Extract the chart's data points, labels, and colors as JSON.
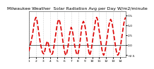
{
  "title": "Milwaukee Weather  Solar Radiation Avg per Day W/m2/minute",
  "line_color": "#dd0000",
  "line_style": "--",
  "line_width": 1.2,
  "bg_color": "#ffffff",
  "grid_color": "#aaaaaa",
  "ylim": [
    -3.0,
    8.5
  ],
  "yticks": [
    -2.5,
    0,
    2.5,
    5.0,
    7.5
  ],
  "y_values": [
    -1.5,
    -0.5,
    0.5,
    1.5,
    2.5,
    4.0,
    5.5,
    6.5,
    7.0,
    6.5,
    5.0,
    3.5,
    2.0,
    0.5,
    -0.5,
    -1.5,
    -2.0,
    -2.2,
    -1.5,
    -0.5,
    0.5,
    1.0,
    0.5,
    -0.5,
    -1.5,
    -2.0,
    -2.3,
    -2.0,
    -1.0,
    0.5,
    2.0,
    3.5,
    5.0,
    6.0,
    6.5,
    6.0,
    5.0,
    3.5,
    2.0,
    0.5,
    -1.0,
    -2.0,
    -2.5,
    -2.0,
    -1.0,
    0.5,
    2.5,
    3.5,
    4.5,
    4.0,
    3.0,
    1.5,
    0.0,
    -1.0,
    -2.0,
    -2.4,
    -2.0,
    -1.0,
    0.5,
    2.5,
    4.5,
    5.5,
    6.0,
    5.5,
    4.5,
    3.0,
    1.5,
    0.0,
    -1.5,
    -2.5,
    -2.0,
    -1.0,
    0.5,
    2.0,
    3.5,
    5.0,
    6.5,
    7.0,
    6.5,
    5.0,
    3.5,
    2.0,
    0.5,
    -1.0,
    -2.0,
    -2.5,
    -2.0,
    -1.0,
    0.5,
    2.0,
    3.5,
    5.0,
    6.0,
    6.5,
    6.0,
    5.0,
    3.5,
    2.0,
    0.5,
    -1.0,
    -2.0,
    -2.5,
    -2.2,
    -1.5,
    -0.5,
    1.0,
    2.5,
    4.0,
    5.5,
    6.5,
    7.0
  ],
  "vgrid_step": 8,
  "xlabel_step": 8,
  "title_fontsize": 4.5,
  "tick_fontsize": 3.2,
  "hline_color": "#000000",
  "hline_y": 0
}
